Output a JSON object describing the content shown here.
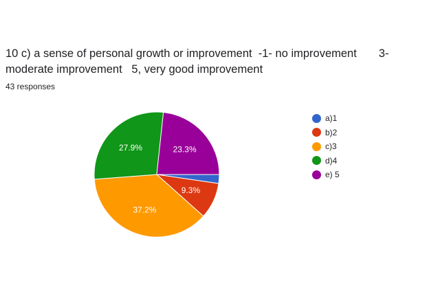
{
  "question": {
    "title": "10 c) a sense of personal growth or improvement  -1- no improvement       3- moderate improvement   5, very good improvement",
    "responses": "43 responses"
  },
  "chart_data": {
    "type": "pie",
    "categories": [
      "a)1",
      "b)2",
      "c)3",
      "d)4",
      "e) 5"
    ],
    "values": [
      2.3,
      9.3,
      37.2,
      27.9,
      23.3
    ],
    "labels": [
      "",
      "9.3%",
      "37.2%",
      "27.9%",
      "23.3%"
    ],
    "colors": [
      "#3366cc",
      "#dc3912",
      "#ff9900",
      "#109618",
      "#990099"
    ],
    "legend": "right",
    "title": ""
  }
}
